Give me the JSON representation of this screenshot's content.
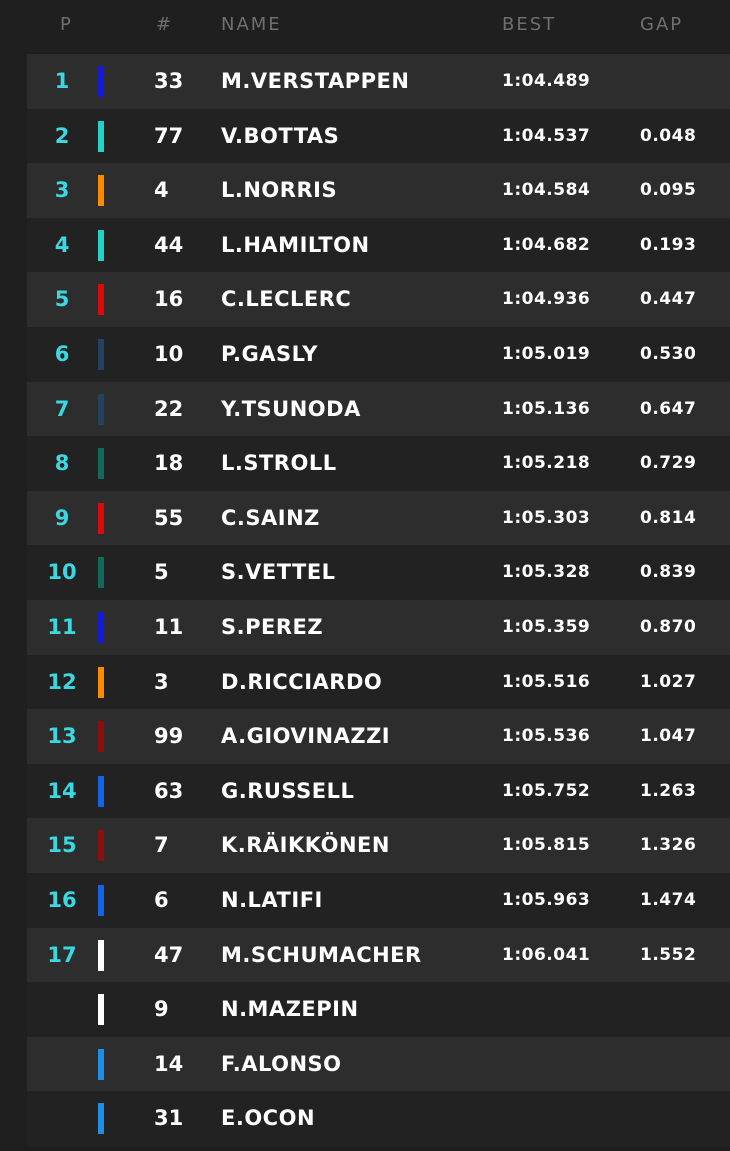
{
  "table": {
    "headers": [
      "P",
      "#",
      "NAME",
      "BEST",
      "GAP"
    ],
    "rows": [
      [
        1,
        33,
        "M.VERSTAPPEN",
        "1:04.489",
        null
      ],
      [
        2,
        77,
        "V.BOTTAS",
        "1:04.537",
        "0.048"
      ],
      [
        3,
        4,
        "L.NORRIS",
        "1:04.584",
        "0.095"
      ],
      [
        4,
        44,
        "L.HAMILTON",
        "1:04.682",
        "0.193"
      ],
      [
        5,
        16,
        "C.LECLERC",
        "1:04.936",
        "0.447"
      ],
      [
        6,
        10,
        "P.GASLY",
        "1:05.019",
        "0.530"
      ],
      [
        7,
        22,
        "Y.TSUNODA",
        "1:05.136",
        "0.647"
      ],
      [
        8,
        18,
        "L.STROLL",
        "1:05.218",
        "0.729"
      ],
      [
        9,
        55,
        "C.SAINZ",
        "1:05.303",
        "0.814"
      ],
      [
        10,
        5,
        "S.VETTEL",
        "1:05.328",
        "0.839"
      ],
      [
        11,
        11,
        "S.PEREZ",
        "1:05.359",
        "0.870"
      ],
      [
        12,
        3,
        "D.RICCIARDO",
        "1:05.516",
        "1.027"
      ],
      [
        13,
        99,
        "A.GIOVINAZZI",
        "1:05.536",
        "1.047"
      ],
      [
        14,
        63,
        "G.RUSSELL",
        "1:05.752",
        "1.263"
      ],
      [
        15,
        7,
        "K.RÄIKKÖNEN",
        "1:05.815",
        "1.326"
      ],
      [
        16,
        6,
        "N.LATIFI",
        "1:05.963",
        "1.474"
      ],
      [
        17,
        47,
        "M.SCHUMACHER",
        "1:06.041",
        "1.552"
      ],
      [
        null,
        9,
        "N.MAZEPIN",
        null,
        null
      ],
      [
        null,
        14,
        "F.ALONSO",
        null,
        null
      ],
      [
        null,
        31,
        "E.OCON",
        null,
        null
      ]
    ],
    "team_colors": [
      "#1418d8",
      "#23d3c8",
      "#ff8a00",
      "#23d3c8",
      "#dc0a0a",
      "#24415e",
      "#24415e",
      "#116a5a",
      "#dc0a0a",
      "#116a5a",
      "#1418d8",
      "#ff8a00",
      "#8a1010",
      "#1564e8",
      "#8a1010",
      "#1564e8",
      "#ffffff",
      "#ffffff",
      "#1e8fe8",
      "#1e8fe8"
    ]
  }
}
